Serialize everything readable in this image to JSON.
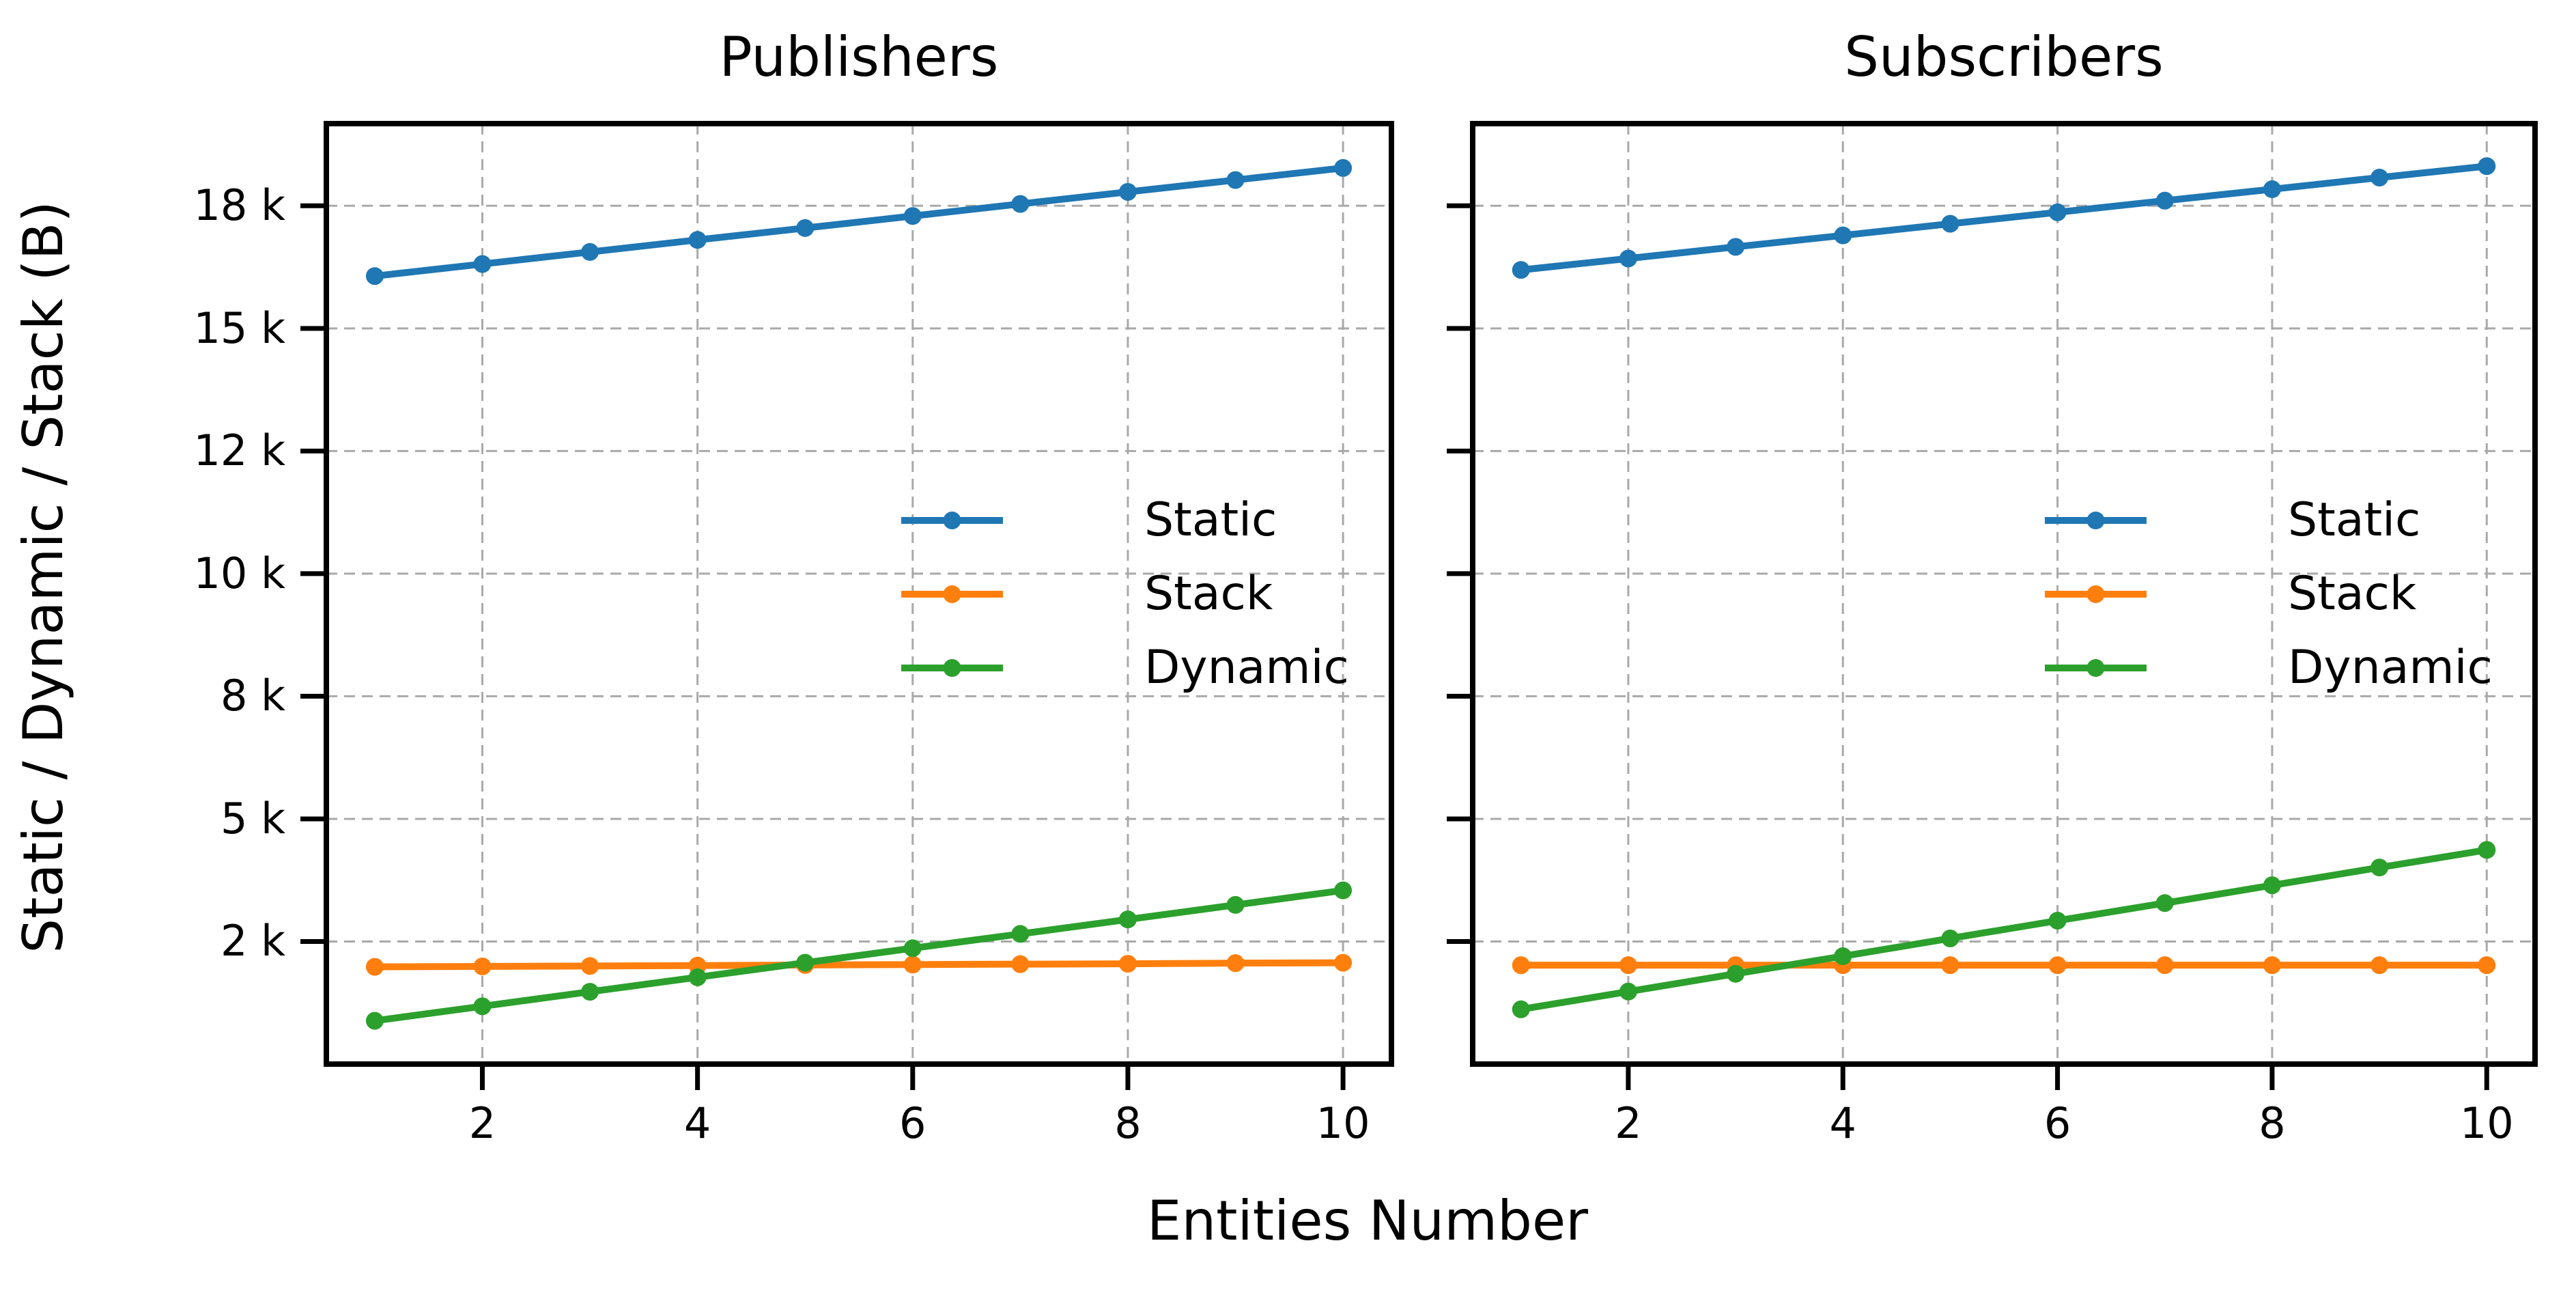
{
  "figure": {
    "background": "#ffffff",
    "ylabel": "Static / Dynamic / Stack (B)",
    "xlabel": "Entities Number"
  },
  "y_axis": {
    "tick_values": [
      2000,
      5000,
      8000,
      10000,
      12000,
      15000,
      18000
    ],
    "tick_labels": [
      "2 k",
      "5 k",
      "8 k",
      "10 k",
      "12 k",
      "15 k",
      "18 k"
    ],
    "spacing": "uniform",
    "grid": true
  },
  "x_axis": {
    "tick_values": [
      2,
      4,
      6,
      8,
      10
    ],
    "tick_labels": [
      "2",
      "4",
      "6",
      "8",
      "10"
    ],
    "grid": true
  },
  "colors": {
    "static": "#1f77b4",
    "stack": "#ff7f0e",
    "dynamic": "#2ca02c",
    "grid": "#a9a9a9",
    "axes": "#000000"
  },
  "chart_data": [
    {
      "type": "line",
      "title": "Publishers",
      "x": [
        1,
        2,
        3,
        4,
        5,
        6,
        7,
        8,
        9,
        10
      ],
      "series": [
        {
          "name": "Static",
          "color": "#1f77b4",
          "values": [
            16280,
            16575,
            16870,
            17165,
            17455,
            17750,
            18045,
            18340,
            18630,
            18925
          ]
        },
        {
          "name": "Stack",
          "color": "#ff7f0e",
          "values": [
            1380,
            1390,
            1400,
            1410,
            1425,
            1435,
            1445,
            1455,
            1470,
            1480
          ]
        },
        {
          "name": "Dynamic",
          "color": "#2ca02c",
          "values": [
            60,
            415,
            770,
            1125,
            1480,
            1835,
            2185,
            2540,
            2895,
            3250
          ]
        }
      ],
      "legend_position": "center right",
      "xlim": [
        0.55,
        10.45
      ]
    },
    {
      "type": "line",
      "title": "Subscribers",
      "x": [
        1,
        2,
        3,
        4,
        5,
        6,
        7,
        8,
        9,
        10
      ],
      "series": [
        {
          "name": "Static",
          "color": "#1f77b4",
          "values": [
            16430,
            16710,
            16995,
            17275,
            17560,
            17840,
            18125,
            18405,
            18690,
            18970
          ]
        },
        {
          "name": "Stack",
          "color": "#ff7f0e",
          "values": [
            1420,
            1420,
            1420,
            1420,
            1420,
            1420,
            1420,
            1420,
            1420,
            1420
          ]
        },
        {
          "name": "Dynamic",
          "color": "#2ca02c",
          "values": [
            340,
            775,
            1210,
            1640,
            2075,
            2510,
            2940,
            3375,
            3810,
            4240
          ]
        }
      ],
      "legend_position": "center right",
      "xlim": [
        0.55,
        10.45
      ]
    }
  ]
}
